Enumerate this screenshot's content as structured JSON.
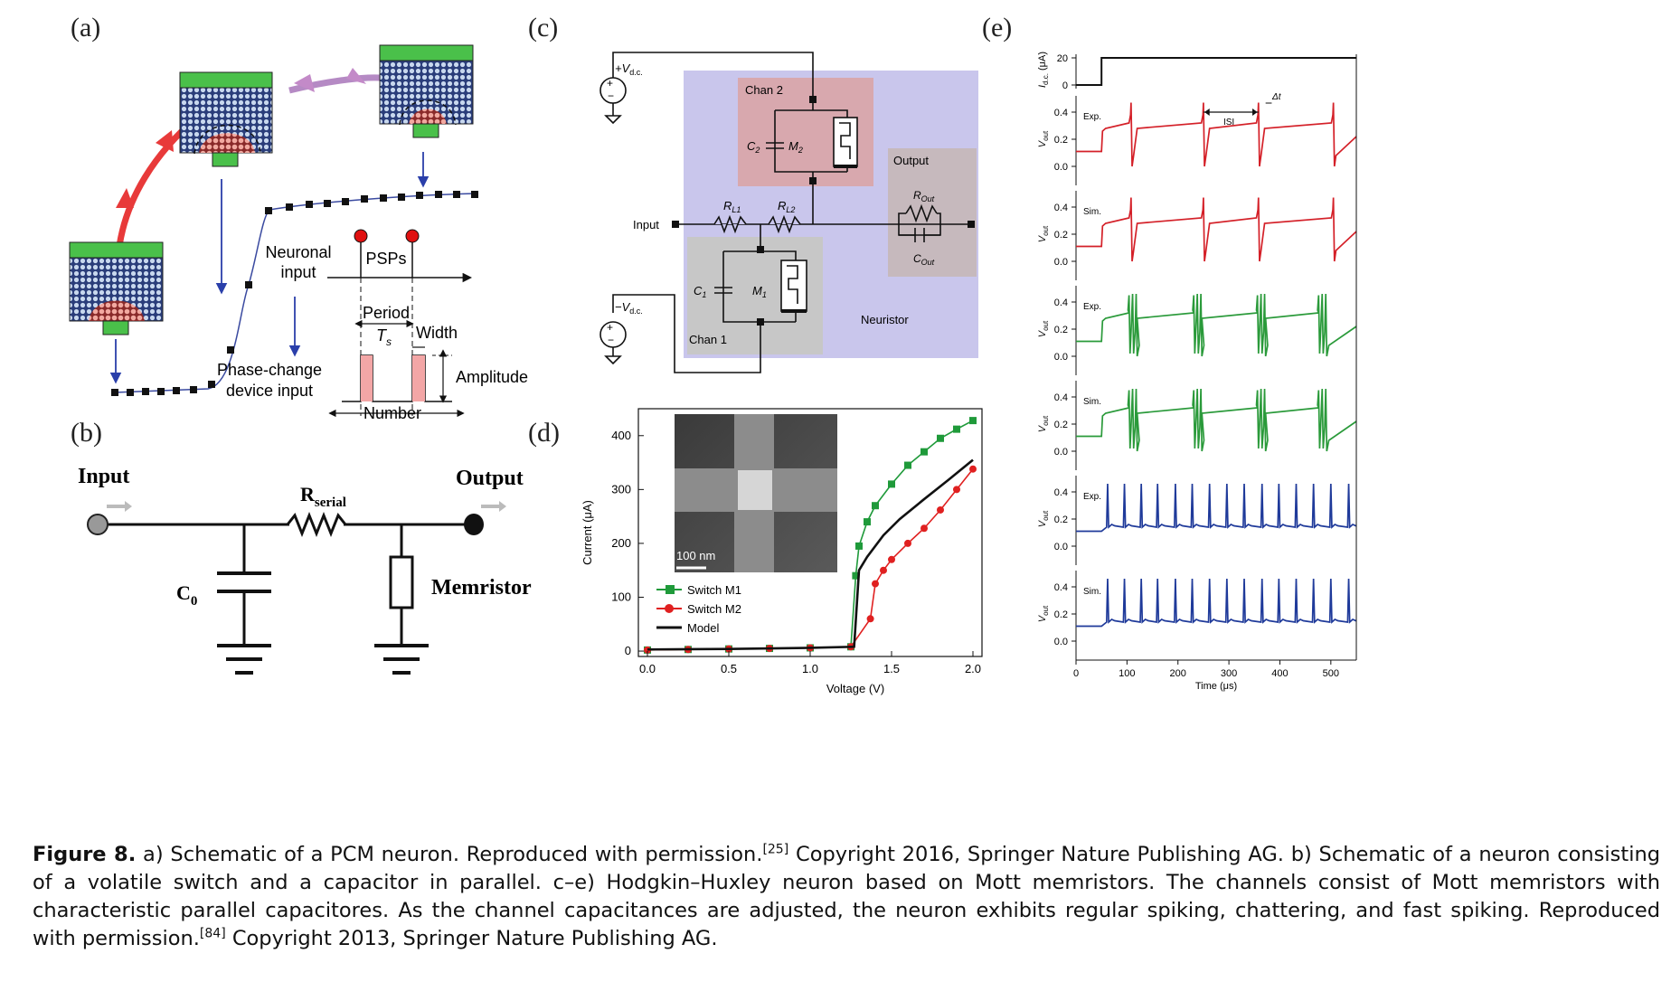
{
  "panels": {
    "a": {
      "label": "(a)",
      "neuronal_input_line1": "Neuronal",
      "neuronal_input_line2": "input",
      "psps": "PSPs",
      "period": "Period",
      "ts": "T",
      "ts_sub": "s",
      "width": "Width",
      "phase_change_line1": "Phase-change",
      "phase_change_line2": "device input",
      "amplitude": "Amplitude",
      "number": "Number"
    },
    "b": {
      "label": "(b)",
      "input": "Input",
      "output": "Output",
      "r_main": "R",
      "r_sub": "serial",
      "c_main": "C",
      "c_sub": "0",
      "memristor": "Memristor"
    },
    "c": {
      "label": "(c)",
      "vdc_pos": "+V",
      "vdc_neg": "−V",
      "vdc_sub": "d.c.",
      "chan2": "Chan 2",
      "chan1": "Chan 1",
      "c2": "C",
      "c2_sub": "2",
      "m2": "M",
      "m2_sub": "2",
      "c1": "C",
      "c1_sub": "1",
      "m1": "M",
      "m1_sub": "1",
      "rl1": "R",
      "rl1_sub": "L1",
      "rl2": "R",
      "rl2_sub": "L2",
      "input": "Input",
      "output": "Output",
      "rout": "R",
      "rout_sub": "Out",
      "cout": "C",
      "cout_sub": "Out",
      "neuristor": "Neuristor"
    },
    "d": {
      "label": "(d)"
    },
    "e": {
      "label": "(e)"
    }
  },
  "chart_data": [
    {
      "type": "line",
      "panel": "d",
      "xlabel": "Voltage (V)",
      "ylabel": "Current (μA)",
      "xlim": [
        0,
        2.0
      ],
      "ylim": [
        -10,
        450
      ],
      "xticks": [
        "0.0",
        "0.5",
        "1.0",
        "1.5",
        "2.0"
      ],
      "yticks": [
        "0",
        "100",
        "200",
        "300",
        "400"
      ],
      "inset_scale": "100 nm",
      "series": [
        {
          "name": "Switch M1",
          "color": "#1f9a3a",
          "marker": "square",
          "x": [
            0.0,
            0.25,
            0.5,
            0.75,
            1.0,
            1.25,
            1.28,
            1.3,
            1.35,
            1.4,
            1.5,
            1.6,
            1.7,
            1.8,
            1.9,
            2.0
          ],
          "y": [
            2,
            3,
            4,
            5,
            6,
            8,
            140,
            195,
            240,
            270,
            310,
            345,
            370,
            395,
            412,
            428
          ]
        },
        {
          "name": "Switch M2",
          "color": "#e02020",
          "marker": "circle",
          "x": [
            0.0,
            0.25,
            0.5,
            0.75,
            1.0,
            1.25,
            1.37,
            1.4,
            1.45,
            1.5,
            1.6,
            1.7,
            1.8,
            1.9,
            2.0
          ],
          "y": [
            2,
            3,
            4,
            5,
            6,
            8,
            60,
            125,
            150,
            170,
            200,
            228,
            262,
            300,
            338
          ]
        },
        {
          "name": "Model",
          "color": "#111111",
          "marker": "none",
          "x": [
            0.0,
            0.5,
            1.0,
            1.27,
            1.3,
            1.35,
            1.45,
            1.55,
            1.7,
            1.85,
            2.0
          ],
          "y": [
            3,
            4,
            6,
            8,
            150,
            175,
            215,
            245,
            282,
            318,
            355
          ]
        }
      ]
    },
    {
      "type": "line",
      "panel": "e",
      "xlabel": "Time (μs)",
      "xlim": [
        0,
        550
      ],
      "xticks": [
        "0",
        "100",
        "200",
        "300",
        "400",
        "500"
      ],
      "top_trace": {
        "ylabel": "I",
        "ylabel_sub": "d.c.",
        "ylabel_unit": "(μA)",
        "yticks": [
          "0",
          "20"
        ],
        "x": [
          0,
          50,
          50,
          550
        ],
        "y": [
          0,
          0,
          20,
          20
        ]
      },
      "annotations": {
        "isi": "ISI",
        "dt": "Δt"
      },
      "traces": [
        {
          "label": "Exp.",
          "color": "#d42028",
          "ylabel": "V",
          "ylabel_sub": "out",
          "yticks": [
            "0.0",
            "0.2",
            "0.4"
          ],
          "pattern": "regular",
          "spikes": [
            108,
            250,
            358,
            505
          ]
        },
        {
          "label": "Sim.",
          "color": "#d42028",
          "ylabel": "V",
          "ylabel_sub": "out",
          "yticks": [
            "0.0",
            "0.2",
            "0.4"
          ],
          "pattern": "regular",
          "spikes": [
            108,
            250,
            358,
            505
          ]
        },
        {
          "label": "Exp.",
          "color": "#2a9a3a",
          "ylabel": "V",
          "ylabel_sub": "out",
          "yticks": [
            "0.0",
            "0.2",
            "0.4"
          ],
          "pattern": "chattering",
          "spikes": [
            108,
            235,
            360,
            480
          ]
        },
        {
          "label": "Sim.",
          "color": "#2a9a3a",
          "ylabel": "V",
          "ylabel_sub": "out",
          "yticks": [
            "0.0",
            "0.2",
            "0.4"
          ],
          "pattern": "chattering",
          "spikes": [
            108,
            235,
            360,
            480
          ]
        },
        {
          "label": "Exp.",
          "color": "#1f3a9a",
          "ylabel": "V",
          "ylabel_sub": "out",
          "yticks": [
            "0.0",
            "0.2",
            "0.4"
          ],
          "pattern": "fast",
          "spikes": [
            62,
            95,
            128,
            160,
            195,
            228,
            262,
            296,
            330,
            365,
            398,
            432,
            466,
            500,
            535
          ]
        },
        {
          "label": "Sim.",
          "color": "#1f3a9a",
          "ylabel": "V",
          "ylabel_sub": "out",
          "yticks": [
            "0.0",
            "0.2",
            "0.4"
          ],
          "pattern": "fast",
          "spikes": [
            62,
            95,
            128,
            160,
            195,
            228,
            262,
            296,
            330,
            365,
            398,
            432,
            466,
            500,
            535
          ]
        }
      ]
    }
  ],
  "caption": {
    "figure": "Figure 8.",
    "text1": " a) Schematic of a PCM neuron. Reproduced with permission.",
    "ref1": "[25]",
    "text2": " Copyright 2016, Springer Nature Publishing AG. b) Schematic of a neuron consisting of a volatile switch and a capacitor in parallel. c–e) Hodgkin–Huxley neuron based on Mott memristors. The channels consist of Mott memristors with characteristic parallel capacitores. As the channel capacitances are adjusted, the neuron exhibits regular spiking, chattering, and fast spiking. Reproduced with permission.",
    "ref2": "[84]",
    "text3": " Copyright 2013, Springer Nature Publishing AG."
  }
}
